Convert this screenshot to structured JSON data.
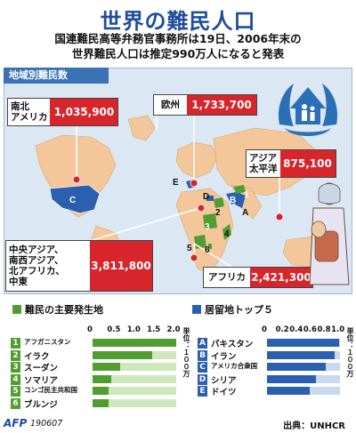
{
  "title": "世界の難民人口",
  "subtitle_line1": "国連難民高等弁務官事務所は19日、2006年末の",
  "subtitle_line2": "世界難民人口は推定990万人になると発表",
  "map_header": "地域別難民数",
  "regions": [
    {
      "key": "americas",
      "label1": "南北",
      "label2": "アメリカ",
      "value": "1,035,900"
    },
    {
      "key": "europe",
      "label1": "欧州",
      "label2": "",
      "value": "1,733,700"
    },
    {
      "key": "asia",
      "label1": "アジア",
      "label2": "太平洋",
      "value": "875,100"
    },
    {
      "key": "mideast",
      "label1": "中央アジア、",
      "label2": "南西アジア、",
      "label3": "北アフリカ、",
      "label4": "中東",
      "value": "3,811,800"
    },
    {
      "key": "africa",
      "label1": "アフリカ",
      "label2": "",
      "value": "2,421,300"
    }
  ],
  "map_letters": {
    "A": "A",
    "B": "B",
    "C": "C",
    "D": "D",
    "E": "E",
    "n1": "1",
    "n2": "2",
    "n3": "3",
    "n4": "4",
    "n5": "5",
    "n6": "6"
  },
  "origins_title": "難民の主要発生地",
  "hosts_title": "居留地トップ５",
  "unit_label": "単位：１００万",
  "chart_data": [
    {
      "type": "bar",
      "title": "難民の主要発生地",
      "categories": [
        "アフガニスタン",
        "イラク",
        "スーダン",
        "ソマリア",
        "コンゴ民主共和国",
        "ブルンジ"
      ],
      "markers": [
        "1",
        "2",
        "3",
        "4",
        "5",
        "6"
      ],
      "values": [
        2.1,
        1.5,
        0.69,
        0.46,
        0.4,
        0.4
      ],
      "xlim": [
        0,
        2.1
      ],
      "ticks": [
        "0",
        "0.5",
        "1.0",
        "1.5",
        "2.0"
      ],
      "tick_values": [
        0,
        0.5,
        1.0,
        1.5,
        2.0
      ],
      "unit": "単位：１００万",
      "color": "#4f9e2f",
      "track": "#cfe7bd"
    },
    {
      "type": "bar",
      "title": "居留地トップ５",
      "categories": [
        "パキスタン",
        "イラン",
        "アメリカ合衆国",
        "シリア",
        "ドイツ"
      ],
      "markers": [
        "A",
        "B",
        "C",
        "D",
        "E"
      ],
      "values": [
        1.04,
        0.97,
        0.84,
        0.7,
        0.61
      ],
      "xlim": [
        0,
        1.05
      ],
      "ticks": [
        "0",
        "0.2",
        "0.4",
        "0.6",
        "0.8",
        "1.0"
      ],
      "tick_values": [
        0,
        0.2,
        0.4,
        0.6,
        0.8,
        1.0
      ],
      "unit": "単位：１００万",
      "color": "#2b5fb0",
      "track": "#c8d9ef"
    }
  ],
  "footer": {
    "agency": "AFP",
    "code": "190607",
    "source": "出典：UNHCR"
  },
  "colors": {
    "title": "#1f4d9a",
    "value_bg": "#d8242b",
    "origin": "#4f9e2f",
    "host": "#2b5fb0"
  }
}
